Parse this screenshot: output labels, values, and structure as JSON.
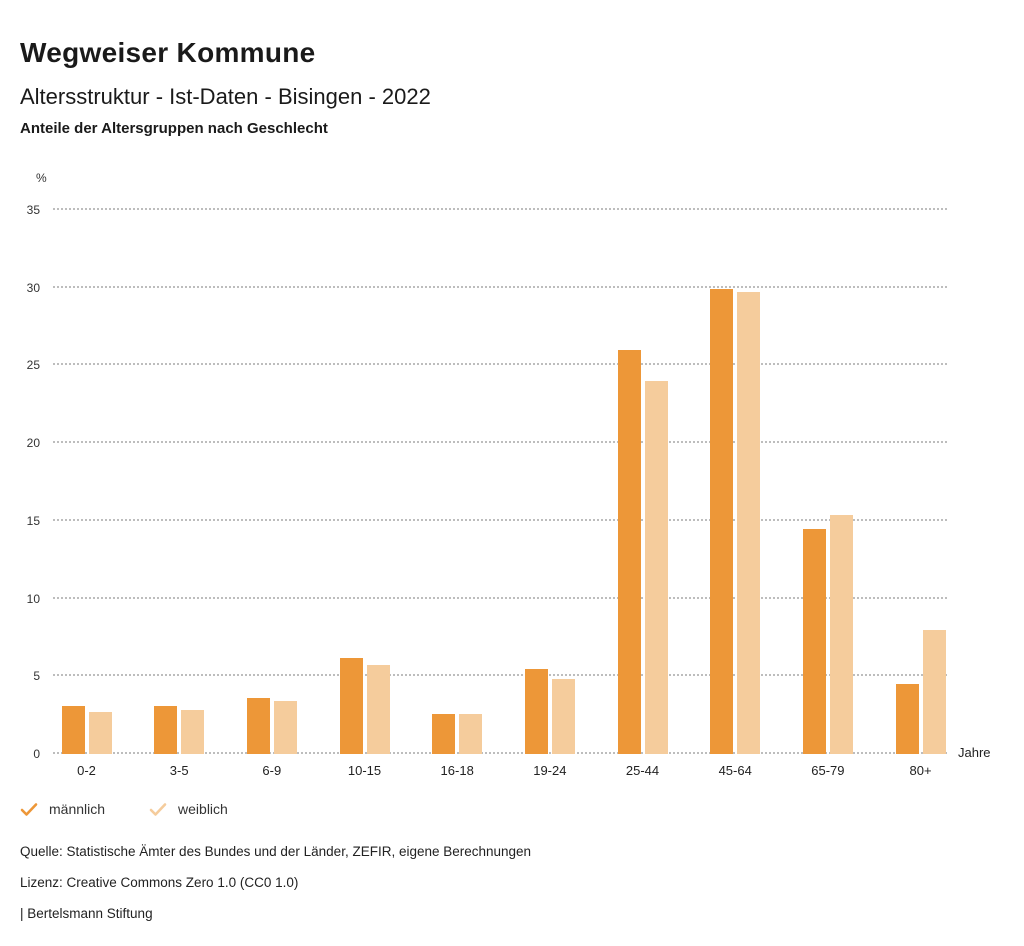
{
  "header": {
    "title": "Wegweiser Kommune",
    "subtitle": "Altersstruktur - Ist-Daten - Bisingen - 2022"
  },
  "chart_data": {
    "type": "bar",
    "title": "Anteile der Altersgruppen nach Geschlecht",
    "unit_label": "%",
    "xlabel": "Jahre",
    "ylim": [
      0,
      35
    ],
    "yticks": [
      35,
      30,
      25,
      20,
      15,
      10,
      5,
      0
    ],
    "grid": true,
    "gridline_style": "dotted",
    "legend_position": "bottom-left",
    "categories": [
      "0-2",
      "3-5",
      "6-9",
      "10-15",
      "16-18",
      "19-24",
      "25-44",
      "45-64",
      "65-79",
      "80+"
    ],
    "series": [
      {
        "name": "männlich",
        "color": "#ED9738",
        "values": [
          3.1,
          3.1,
          3.6,
          6.2,
          2.6,
          5.5,
          26.0,
          29.9,
          14.5,
          4.5
        ]
      },
      {
        "name": "weiblich",
        "color": "#F5CC9C",
        "values": [
          2.7,
          2.8,
          3.4,
          5.7,
          2.6,
          4.8,
          24.0,
          29.7,
          15.4,
          8.0
        ]
      }
    ]
  },
  "footer": {
    "source": "Quelle: Statistische Ämter des Bundes und der Länder, ZEFIR, eigene Berechnungen",
    "license": "Lizenz: Creative Commons Zero 1.0 (CC0 1.0)",
    "branding": "| Bertelsmann Stiftung"
  }
}
